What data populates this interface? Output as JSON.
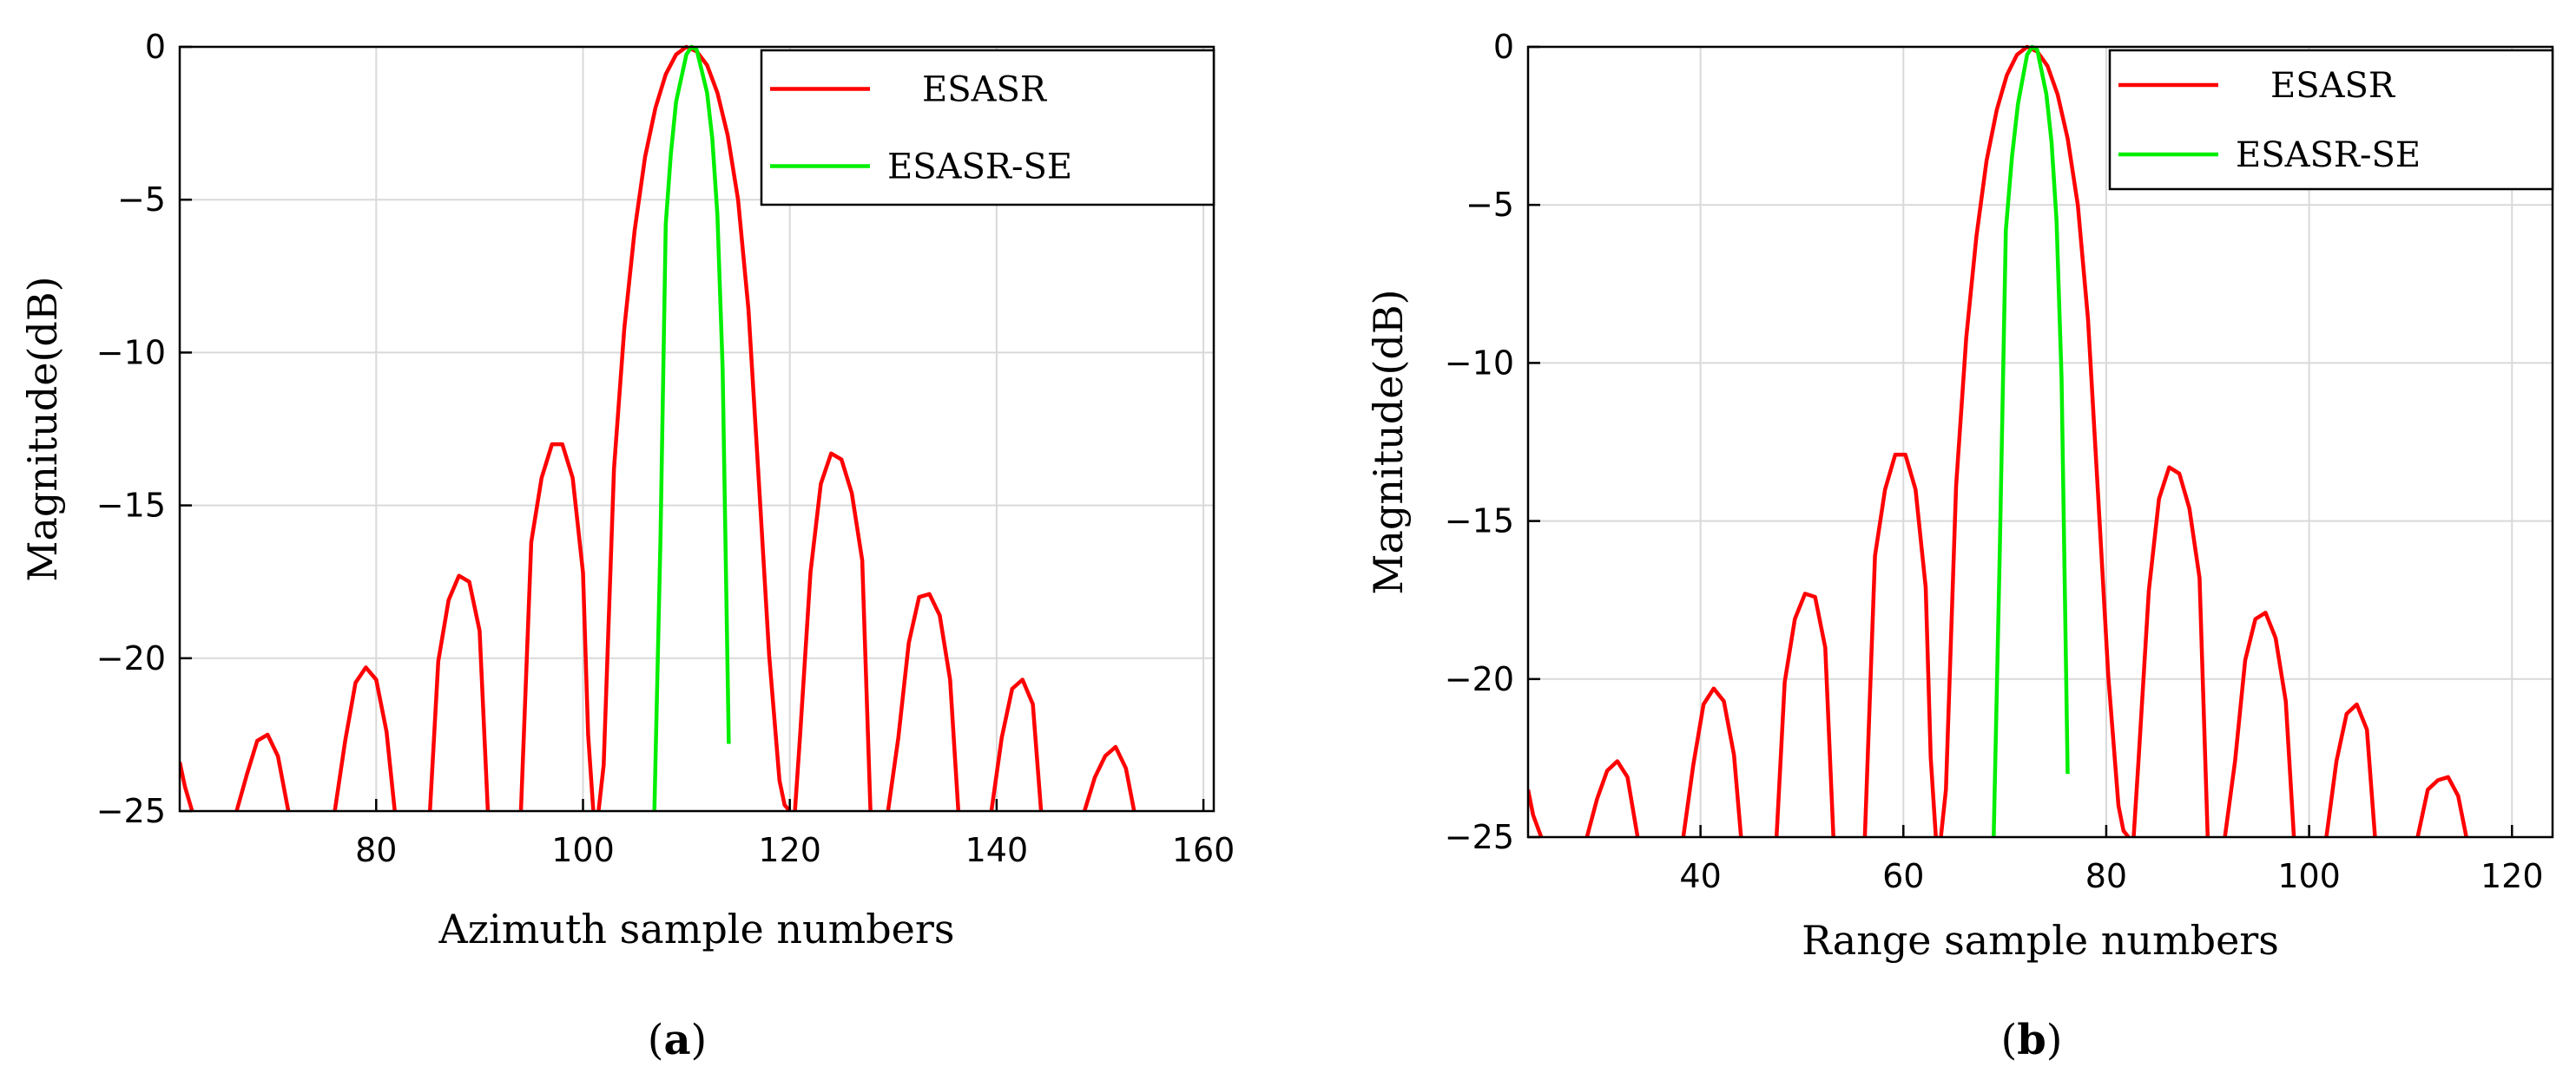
{
  "colors": {
    "esasr": "#ff0000",
    "esasr_se": "#00ee00",
    "grid": "#d9d9d9",
    "axis": "#000000"
  },
  "chart_data": [
    {
      "type": "line",
      "panel_label": "a",
      "xlabel": "Azimuth sample numbers",
      "ylabel": "Magnitude(dB)",
      "xlim": [
        61,
        161
      ],
      "ylim": [
        -25,
        0
      ],
      "xticks": [
        80,
        100,
        120,
        140,
        160
      ],
      "yticks": [
        0,
        -5,
        -10,
        -15,
        -20,
        -25
      ],
      "grid": true,
      "legend_position": "top-right",
      "series": [
        {
          "name": "ESASR",
          "color": "#ff0000",
          "segments": [
            {
              "x": [
                61,
                61.5,
                62.2
              ],
              "y": [
                -23.4,
                -24.2,
                -25
              ]
            },
            {
              "x": [
                66.5,
                67.5,
                68.5,
                69.5,
                70.5,
                71.5
              ],
              "y": [
                -25,
                -23.8,
                -22.7,
                -22.5,
                -23.2,
                -25
              ]
            },
            {
              "x": [
                76,
                77,
                78,
                79,
                80,
                81,
                81.8
              ],
              "y": [
                -25,
                -22.7,
                -20.8,
                -20.3,
                -20.7,
                -22.4,
                -25
              ]
            },
            {
              "x": [
                85.2,
                86,
                87,
                88,
                89,
                90,
                90.8
              ],
              "y": [
                -25,
                -20.1,
                -18.1,
                -17.3,
                -17.5,
                -19.1,
                -25
              ]
            },
            {
              "x": [
                94,
                95,
                96,
                97,
                98,
                99,
                100,
                100.5,
                101
              ],
              "y": [
                -25,
                -16.2,
                -14.1,
                -13.0,
                -13.0,
                -14.1,
                -17.2,
                -22.5,
                -25
              ]
            },
            {
              "x": [
                101.5,
                102,
                103,
                104,
                105,
                106,
                107,
                108,
                109,
                110,
                111,
                112,
                113,
                114,
                115,
                116,
                117,
                118,
                119,
                119.5,
                120
              ],
              "y": [
                -25,
                -23.5,
                -13.8,
                -9.2,
                -6.0,
                -3.6,
                -2.0,
                -0.9,
                -0.25,
                0,
                -0.15,
                -0.6,
                -1.5,
                -2.9,
                -5.0,
                -8.6,
                -14.2,
                -19.9,
                -24.0,
                -24.8,
                -25
              ]
            },
            {
              "x": [
                120.5,
                121,
                122,
                123,
                124,
                125,
                126,
                127,
                127.8
              ],
              "y": [
                -25,
                -22.5,
                -17.2,
                -14.3,
                -13.3,
                -13.5,
                -14.6,
                -16.8,
                -25
              ]
            },
            {
              "x": [
                129.5,
                130.5,
                131.5,
                132.5,
                133.5,
                134.5,
                135.5,
                136.3
              ],
              "y": [
                -25,
                -22.6,
                -19.5,
                -18.0,
                -17.9,
                -18.6,
                -20.7,
                -25
              ]
            },
            {
              "x": [
                139.5,
                140.5,
                141.5,
                142.5,
                143.5,
                144.3
              ],
              "y": [
                -25,
                -22.6,
                -21.0,
                -20.7,
                -21.5,
                -25
              ]
            },
            {
              "x": [
                148.5,
                149.5,
                150.5,
                151.5,
                152.5,
                153.3
              ],
              "y": [
                -25,
                -23.9,
                -23.2,
                -22.9,
                -23.6,
                -25
              ]
            }
          ]
        },
        {
          "name": "ESASR-SE",
          "color": "#00ee00",
          "segments": [
            {
              "x": [
                106.9,
                107.5,
                108,
                108.5,
                109,
                110,
                110.5,
                111,
                112,
                112.5,
                113,
                113.5,
                114.1
              ],
              "y": [
                -25,
                -16.0,
                -5.8,
                -3.5,
                -1.8,
                -0.25,
                0,
                -0.1,
                -1.5,
                -3.0,
                -5.5,
                -10.5,
                -22.8
              ]
            }
          ]
        }
      ]
    },
    {
      "type": "line",
      "panel_label": "b",
      "xlabel": "Range sample numbers",
      "ylabel": "Magnitude(dB)",
      "xlim": [
        23,
        124
      ],
      "ylim": [
        -25,
        0
      ],
      "xticks": [
        40,
        60,
        80,
        100,
        120
      ],
      "yticks": [
        0,
        -5,
        -10,
        -15,
        -20,
        -25
      ],
      "grid": true,
      "legend_position": "top-right",
      "series": [
        {
          "name": "ESASR",
          "color": "#ff0000",
          "segments": [
            {
              "x": [
                23,
                23.5,
                24.3
              ],
              "y": [
                -23.5,
                -24.3,
                -25
              ]
            },
            {
              "x": [
                28.8,
                29.8,
                30.8,
                31.8,
                32.8,
                33.8
              ],
              "y": [
                -25,
                -23.8,
                -22.9,
                -22.6,
                -23.1,
                -25
              ]
            },
            {
              "x": [
                38.3,
                39.3,
                40.3,
                41.3,
                42.3,
                43.3,
                44.0
              ],
              "y": [
                -25,
                -22.7,
                -20.8,
                -20.3,
                -20.7,
                -22.4,
                -25
              ]
            },
            {
              "x": [
                47.5,
                48.3,
                49.3,
                50.3,
                51.3,
                52.3,
                53.1
              ],
              "y": [
                -25,
                -20.1,
                -18.1,
                -17.3,
                -17.4,
                -19.0,
                -25
              ]
            },
            {
              "x": [
                56.2,
                57.2,
                58.2,
                59.2,
                60.2,
                61.2,
                62.2,
                62.7,
                63.2
              ],
              "y": [
                -25,
                -16.1,
                -14.0,
                -12.9,
                -12.9,
                -14.0,
                -17.1,
                -22.5,
                -25
              ]
            },
            {
              "x": [
                63.7,
                64.2,
                65.2,
                66.2,
                67.2,
                68.2,
                69.2,
                70.2,
                71.2,
                72.2,
                73.2,
                74.2,
                75.2,
                76.2,
                77.2,
                78.2,
                79.2,
                80.2,
                81.2,
                81.7,
                82.2
              ],
              "y": [
                -25,
                -23.5,
                -13.9,
                -9.2,
                -6.0,
                -3.6,
                -2.0,
                -0.9,
                -0.25,
                0,
                -0.15,
                -0.6,
                -1.5,
                -2.9,
                -5.0,
                -8.6,
                -14.2,
                -19.9,
                -24.0,
                -24.8,
                -25
              ]
            },
            {
              "x": [
                82.7,
                83.2,
                84.2,
                85.2,
                86.2,
                87.2,
                88.2,
                89.2,
                90.0
              ],
              "y": [
                -25,
                -22.5,
                -17.2,
                -14.3,
                -13.3,
                -13.5,
                -14.6,
                -16.8,
                -25
              ]
            },
            {
              "x": [
                91.7,
                92.7,
                93.7,
                94.7,
                95.7,
                96.7,
                97.7,
                98.5
              ],
              "y": [
                -25,
                -22.6,
                -19.4,
                -18.1,
                -17.9,
                -18.7,
                -20.7,
                -25
              ]
            },
            {
              "x": [
                101.7,
                102.7,
                103.7,
                104.7,
                105.7,
                106.5
              ],
              "y": [
                -25,
                -22.6,
                -21.1,
                -20.8,
                -21.6,
                -25
              ]
            },
            {
              "x": [
                110.7,
                111.7,
                112.7,
                113.7,
                114.7,
                115.5
              ],
              "y": [
                -25,
                -23.5,
                -23.2,
                -23.1,
                -23.7,
                -25
              ]
            }
          ]
        },
        {
          "name": "ESASR-SE",
          "color": "#00ee00",
          "segments": [
            {
              "x": [
                68.9,
                69.5,
                70.1,
                70.7,
                71.3,
                72.2,
                72.7,
                73.2,
                74.1,
                74.6,
                75.1,
                75.6,
                76.2
              ],
              "y": [
                -25,
                -16.0,
                -5.8,
                -3.5,
                -1.8,
                -0.25,
                0,
                -0.1,
                -1.5,
                -3.0,
                -5.5,
                -10.5,
                -23.0
              ]
            }
          ]
        }
      ]
    }
  ]
}
